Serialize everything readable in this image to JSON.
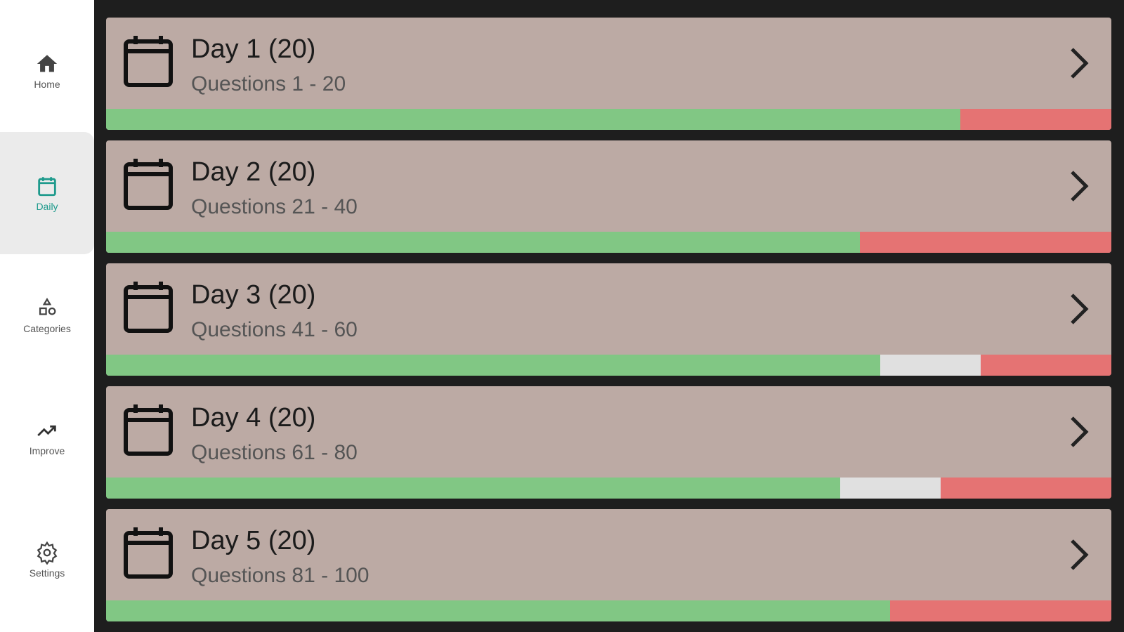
{
  "colors": {
    "correct": "#81c784",
    "unanswered": "#e0e0e0",
    "wrong": "#e57373",
    "card": "#bcaaa4",
    "accent": "#1e9a8c"
  },
  "sidebar": {
    "items": [
      {
        "label": "Home",
        "icon": "home-icon",
        "active": false
      },
      {
        "label": "Daily",
        "icon": "calendar-icon",
        "active": true
      },
      {
        "label": "Categories",
        "icon": "shapes-icon",
        "active": false
      },
      {
        "label": "Improve",
        "icon": "trending-up-icon",
        "active": false
      },
      {
        "label": "Settings",
        "icon": "gear-icon",
        "active": false
      }
    ]
  },
  "days": [
    {
      "title": "Day 1 (20)",
      "subtitle": "Questions 1 - 20",
      "progress": {
        "correct": 0.85,
        "unanswered": 0,
        "wrong": 0.15
      }
    },
    {
      "title": "Day 2 (20)",
      "subtitle": "Questions 21 - 40",
      "progress": {
        "correct": 0.75,
        "unanswered": 0,
        "wrong": 0.25
      }
    },
    {
      "title": "Day 3 (20)",
      "subtitle": "Questions 41 - 60",
      "progress": {
        "correct": 0.77,
        "unanswered": 0.1,
        "wrong": 0.13
      }
    },
    {
      "title": "Day 4 (20)",
      "subtitle": "Questions 61 - 80",
      "progress": {
        "correct": 0.73,
        "unanswered": 0.1,
        "wrong": 0.17
      }
    },
    {
      "title": "Day 5 (20)",
      "subtitle": "Questions 81 - 100",
      "progress": {
        "correct": 0.78,
        "unanswered": 0,
        "wrong": 0.22
      }
    }
  ]
}
